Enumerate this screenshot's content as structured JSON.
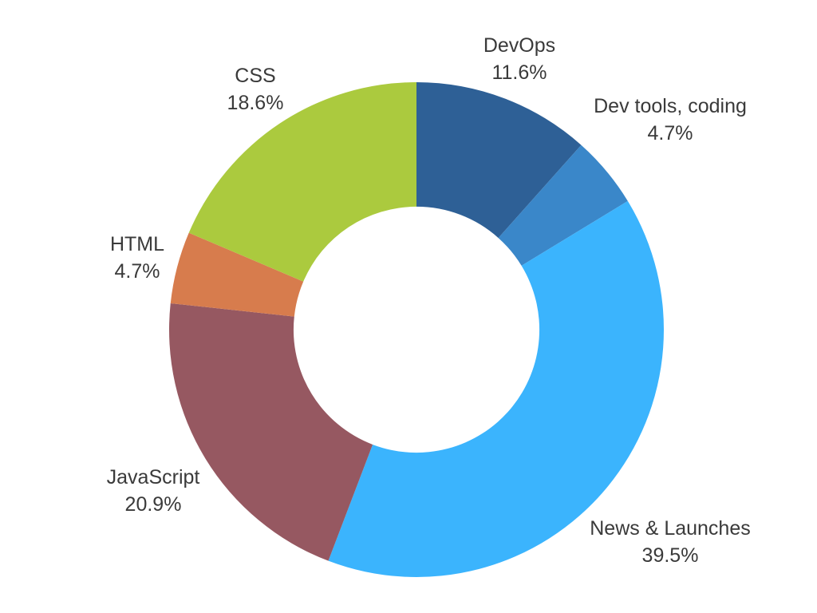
{
  "chart_data": {
    "type": "pie",
    "variant": "donut",
    "title": "",
    "categories": [
      "DevOps",
      "Dev tools, coding",
      "News & Launches",
      "JavaScript",
      "HTML",
      "CSS"
    ],
    "values": [
      11.6,
      4.7,
      39.5,
      20.9,
      4.7,
      18.6
    ],
    "percent_labels": [
      "11.6%",
      "4.7%",
      "39.5%",
      "20.9%",
      "4.7%",
      "18.6%"
    ],
    "colors": [
      "#2e6096",
      "#3a87c9",
      "#3bb4fd",
      "#965861",
      "#d77c4d",
      "#abca3e"
    ],
    "start_angle_deg": 0,
    "direction": "clockwise",
    "inner_radius_ratio": 0.497,
    "legend_position": "none",
    "background_color": "#ffffff",
    "label_color": "#3a3a3a"
  }
}
